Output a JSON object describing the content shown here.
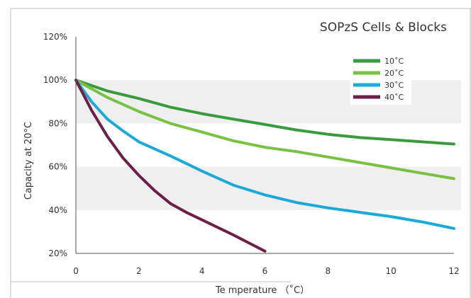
{
  "chart_data": {
    "type": "line",
    "title": "SOPzS Cells & Blocks",
    "xlabel": "Te mperature （˚C）",
    "ylabel": "Capacity at 20°C",
    "xlim": [
      0,
      12
    ],
    "ylim": [
      20,
      120
    ],
    "x_ticks": [
      0,
      2,
      4,
      6,
      8,
      10,
      12
    ],
    "x_tick_labels": [
      "0",
      "2",
      "4",
      "6",
      "8",
      "10",
      "12"
    ],
    "y_ticks": [
      20,
      40,
      60,
      80,
      100,
      120
    ],
    "y_tick_labels": [
      "20%",
      "40%",
      "60%",
      "80%",
      "100%",
      "120%"
    ],
    "grid": "alternating horizontal bands",
    "legend_position": "top-right",
    "series": [
      {
        "name": "10˚C",
        "color": "#3a9a3e",
        "x": [
          0,
          1,
          2,
          3,
          4,
          5,
          6,
          7,
          8,
          9,
          10,
          11,
          12
        ],
        "y": [
          100,
          95,
          91.5,
          87.5,
          84.5,
          82,
          79.5,
          77,
          75,
          73.5,
          72.5,
          71.5,
          70.5
        ]
      },
      {
        "name": "20˚C",
        "color": "#79c143",
        "x": [
          0,
          1,
          2,
          3,
          4,
          5,
          6,
          7,
          8,
          9,
          10,
          11,
          12
        ],
        "y": [
          100,
          92,
          85.5,
          80,
          76,
          72,
          69,
          67,
          64.5,
          62,
          59.5,
          57,
          54.5
        ]
      },
      {
        "name": "30˚C",
        "color": "#1ba9d8",
        "x": [
          0,
          0.5,
          1,
          1.5,
          2,
          3,
          4,
          5,
          6,
          7,
          8,
          9,
          10,
          11,
          12
        ],
        "y": [
          100,
          90,
          82,
          76.5,
          71.5,
          65,
          58,
          51.5,
          47,
          43.5,
          41,
          39,
          37,
          34.5,
          31.5
        ]
      },
      {
        "name": "40˚C",
        "color": "#6d1f4a",
        "x": [
          0,
          0.5,
          1,
          1.5,
          2,
          2.5,
          3,
          3.5,
          4,
          5,
          6
        ],
        "y": [
          100,
          86,
          74,
          64,
          56,
          49,
          43,
          39,
          35.5,
          28.5,
          21
        ]
      }
    ]
  }
}
